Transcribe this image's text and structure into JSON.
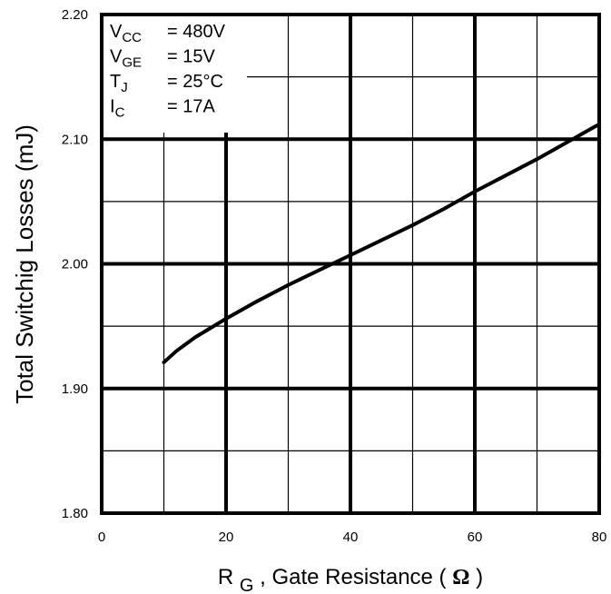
{
  "chart_data": {
    "type": "line",
    "xlabel_main": "R",
    "xlabel_sub": "G",
    "xlabel_rest": ", Gate Resistance ( ",
    "xlabel_omega": "Ω",
    "xlabel_close": ")",
    "ylabel": "Total Switchig Losses  (mJ)",
    "xlim": [
      0,
      80
    ],
    "ylim": [
      1.8,
      2.2
    ],
    "x_ticks": [
      "0",
      "20",
      "40",
      "60",
      "80"
    ],
    "y_ticks": [
      "1.80",
      "1.90",
      "2.00",
      "2.10",
      "2.20"
    ],
    "grid": true,
    "series": [
      {
        "x": [
          10,
          12,
          15,
          20,
          25,
          30,
          35,
          40,
          45,
          50,
          55,
          60,
          65,
          70,
          75,
          80
        ],
        "y": [
          1.921,
          1.93,
          1.941,
          1.956,
          1.97,
          1.983,
          1.995,
          2.007,
          2.019,
          2.031,
          2.044,
          2.058,
          2.071,
          2.084,
          2.098,
          2.112
        ],
        "color": "#000000"
      }
    ],
    "annotation": [
      {
        "main": "V",
        "sub": "CC",
        "value": "= 480V"
      },
      {
        "main": "V",
        "sub": "GE",
        "value": "= 15V"
      },
      {
        "main": "T",
        "sub": "J",
        "value": "= 25°C"
      },
      {
        "main": " I",
        "sub": "C",
        "value": "= 17A"
      }
    ]
  }
}
